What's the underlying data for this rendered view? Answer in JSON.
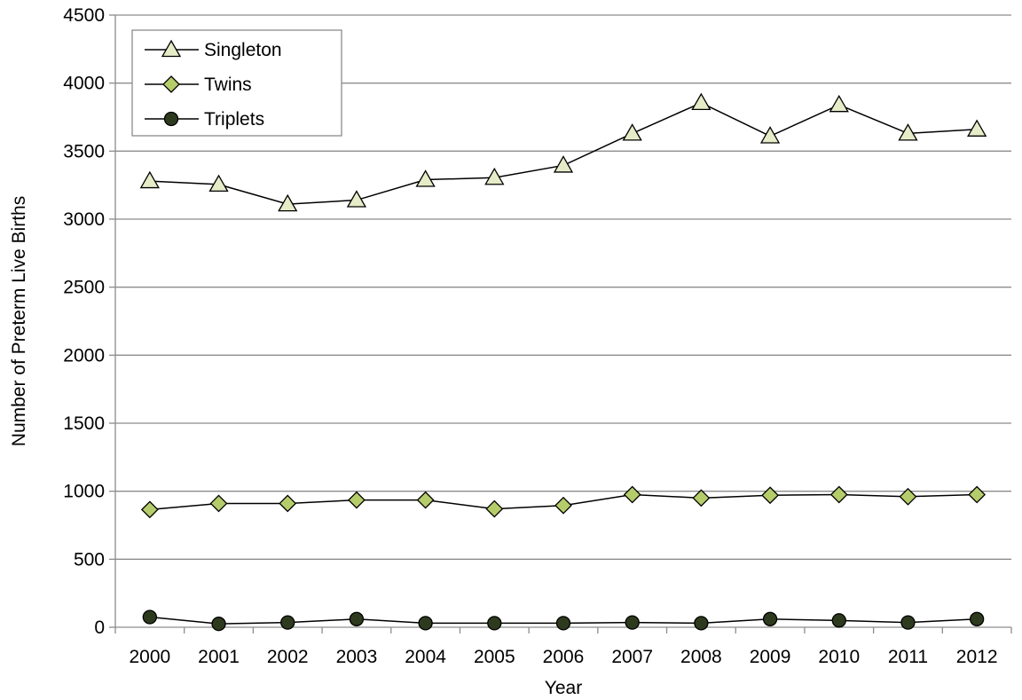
{
  "chart_data": {
    "type": "line",
    "title": "",
    "xlabel": "Year",
    "ylabel": "Number of Preterm Live Births",
    "categories": [
      "2000",
      "2001",
      "2002",
      "2003",
      "2004",
      "2005",
      "2006",
      "2007",
      "2008",
      "2009",
      "2010",
      "2011",
      "2012"
    ],
    "ylim": [
      0,
      4500
    ],
    "yticks": [
      0,
      500,
      1000,
      1500,
      2000,
      2500,
      3000,
      3500,
      4000,
      4500
    ],
    "grid": "horizontal",
    "legend_position": "top-left",
    "series": [
      {
        "name": "Singleton",
        "marker": "triangle",
        "color": "#e6ecc8",
        "values": [
          3280,
          3255,
          3110,
          3140,
          3290,
          3305,
          3395,
          3630,
          3855,
          3610,
          3840,
          3630,
          3660
        ]
      },
      {
        "name": "Twins",
        "marker": "diamond",
        "color": "#b5cc6a",
        "values": [
          865,
          910,
          910,
          935,
          935,
          870,
          895,
          975,
          950,
          970,
          975,
          960,
          975
        ]
      },
      {
        "name": "Triplets",
        "marker": "circle",
        "color": "#2e3a1e",
        "values": [
          75,
          25,
          35,
          60,
          30,
          30,
          30,
          35,
          30,
          60,
          50,
          35,
          60
        ]
      }
    ]
  }
}
